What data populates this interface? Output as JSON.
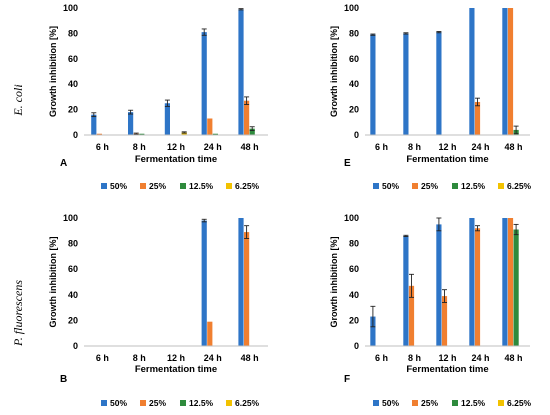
{
  "figure": {
    "row_labels": [
      "E. coli",
      "P. fluorescens"
    ]
  },
  "colors": {
    "50%": "#2e75c7",
    "25%": "#f07f30",
    "12.5%": "#2e8a3c",
    "6.25%": "#f2c200"
  },
  "chart_data": [
    {
      "panel": "A",
      "type": "bar",
      "title": "",
      "xlabel": "Fermentation time",
      "ylabel": "Growth inhibition [%]",
      "ylim": [
        0,
        100
      ],
      "yticks": [
        0,
        20,
        40,
        60,
        80,
        100
      ],
      "categories": [
        "6 h",
        "8 h",
        "12 h",
        "24 h",
        "48 h"
      ],
      "series": [
        {
          "name": "50%",
          "values": [
            16,
            18,
            25,
            81,
            99
          ],
          "errors": [
            1.5,
            1.5,
            2.5,
            2.5,
            0.5
          ]
        },
        {
          "name": "25%",
          "values": [
            1,
            1,
            0,
            13,
            27
          ],
          "errors": [
            0,
            0.5,
            0,
            0,
            3
          ]
        },
        {
          "name": "12.5%",
          "values": [
            0,
            1,
            0,
            1,
            5
          ],
          "errors": [
            0,
            0,
            0,
            0,
            1.5
          ]
        },
        {
          "name": "6.25%",
          "values": [
            0,
            0,
            2,
            0,
            0
          ],
          "errors": [
            0,
            0,
            0.5,
            0,
            0
          ]
        }
      ],
      "legend": "bottom",
      "grid": false
    },
    {
      "panel": "E",
      "type": "bar",
      "title": "",
      "xlabel": "Fermentation time",
      "ylabel": "Growth inhibition [%]",
      "ylim": [
        0,
        100
      ],
      "yticks": [
        0,
        20,
        40,
        60,
        80,
        100
      ],
      "categories": [
        "6 h",
        "8 h",
        "12 h",
        "24 h",
        "48 h"
      ],
      "series": [
        {
          "name": "50%",
          "values": [
            79,
            80,
            81,
            100,
            100
          ],
          "errors": [
            0.5,
            0.5,
            0.5,
            0,
            0
          ]
        },
        {
          "name": "25%",
          "values": [
            0,
            0,
            0,
            26,
            100
          ],
          "errors": [
            0,
            0,
            0,
            3,
            0
          ]
        },
        {
          "name": "12.5%",
          "values": [
            0,
            0,
            0,
            0,
            4
          ],
          "errors": [
            0,
            0,
            0,
            0,
            3
          ]
        },
        {
          "name": "6.25%",
          "values": [
            0,
            0,
            0,
            0,
            0
          ],
          "errors": [
            0,
            0,
            0,
            0,
            0
          ]
        }
      ],
      "legend": "bottom",
      "grid": false
    },
    {
      "panel": "B",
      "type": "bar",
      "title": "",
      "xlabel": "Fermentation time",
      "ylabel": "Growth inhibition [%]",
      "ylim": [
        0,
        100
      ],
      "yticks": [
        0,
        20,
        40,
        60,
        80,
        100
      ],
      "categories": [
        "6 h",
        "8 h",
        "12 h",
        "24 h",
        "48 h"
      ],
      "series": [
        {
          "name": "50%",
          "values": [
            0,
            0,
            0,
            98,
            100
          ],
          "errors": [
            0,
            0,
            0,
            1,
            0
          ]
        },
        {
          "name": "25%",
          "values": [
            0,
            0,
            0,
            19,
            89
          ],
          "errors": [
            0,
            0,
            0,
            0,
            5
          ]
        },
        {
          "name": "12.5%",
          "values": [
            0,
            0,
            0,
            0,
            0
          ],
          "errors": [
            0,
            0,
            0,
            0,
            0
          ]
        },
        {
          "name": "6.25%",
          "values": [
            0,
            0,
            0,
            0,
            0
          ],
          "errors": [
            0,
            0,
            0,
            0,
            0
          ]
        }
      ],
      "legend": "bottom",
      "grid": false
    },
    {
      "panel": "F",
      "type": "bar",
      "title": "",
      "xlabel": "Fermentation time",
      "ylabel": "Growth inhibition [%]",
      "ylim": [
        0,
        100
      ],
      "yticks": [
        0,
        20,
        40,
        60,
        80,
        100
      ],
      "categories": [
        "6 h",
        "8 h",
        "12 h",
        "24 h",
        "48 h"
      ],
      "series": [
        {
          "name": "50%",
          "values": [
            23,
            86,
            95,
            100,
            100
          ],
          "errors": [
            8,
            0.5,
            5,
            0,
            0
          ]
        },
        {
          "name": "25%",
          "values": [
            0,
            47,
            39,
            92,
            100
          ],
          "errors": [
            0,
            9,
            5,
            2,
            0
          ]
        },
        {
          "name": "12.5%",
          "values": [
            0,
            0,
            0,
            0,
            91
          ],
          "errors": [
            0,
            0,
            0,
            0,
            4
          ]
        },
        {
          "name": "6.25%",
          "values": [
            0,
            0,
            0,
            0,
            0
          ],
          "errors": [
            0,
            0,
            0,
            0,
            0
          ]
        }
      ],
      "legend": "bottom",
      "grid": false
    }
  ]
}
